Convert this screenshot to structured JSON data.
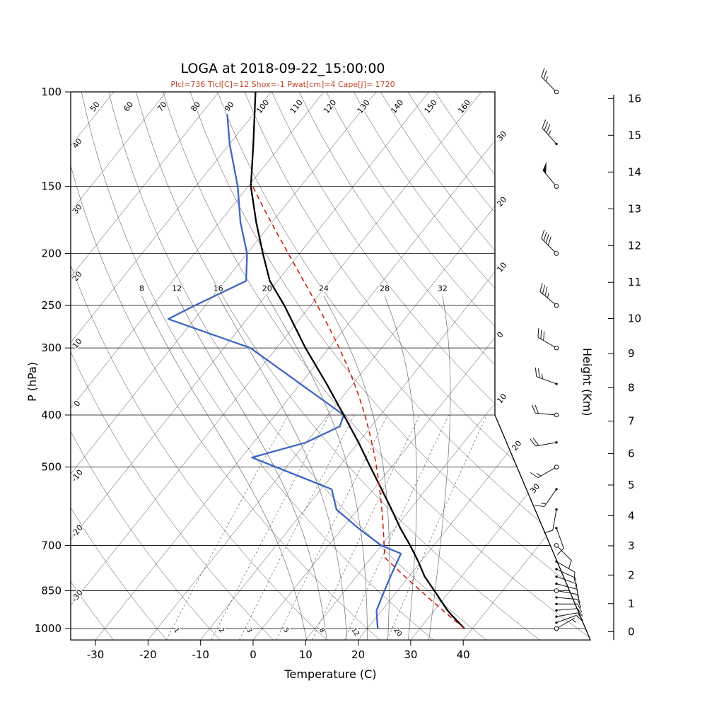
{
  "title": "LOGA at 2018-09-22_15:00:00",
  "subtitle": "Plcl=736 Tlcl[C]=12 Shox=-1 Pwat[cm]=4 Cape[J]= 1720",
  "colors": {
    "temperature": "#000000",
    "dewpoint": "#3b66c4",
    "parcel": "#cc1100",
    "subtitle": "#bf4422",
    "background_lines": "#000000",
    "moist_lines": "#555555"
  },
  "axes": {
    "x_title": "Temperature (C)",
    "y_left_title": "P (hPa)",
    "y_right_title": "Height (Km)",
    "pressure_ticks": [
      100,
      150,
      200,
      250,
      300,
      400,
      500,
      700,
      850,
      1000
    ],
    "temp_ticks": [
      -30,
      -20,
      -10,
      0,
      10,
      20,
      30,
      40
    ],
    "height_ticks": [
      0,
      1,
      2,
      3,
      4,
      5,
      6,
      7,
      8,
      9,
      10,
      11,
      12,
      13,
      14,
      15,
      16
    ]
  },
  "background": {
    "dry_adiabat_thetas": [
      -30,
      -20,
      -10,
      0,
      10,
      20,
      30,
      40,
      50,
      60,
      70,
      80,
      90,
      100,
      110,
      120,
      130,
      140,
      150,
      160
    ],
    "top_adiabat_labels": [
      "50",
      "60",
      "70",
      "80",
      "90",
      "100",
      "110",
      "120",
      "130",
      "140",
      "150",
      "160"
    ],
    "left_adiabat_labels": [
      "40",
      "30",
      "20",
      "10",
      "0",
      "-10",
      "-20",
      "-30"
    ],
    "isotherm_edge_labels": [
      {
        "t": -30,
        "text": "30"
      },
      {
        "t": -20,
        "text": "20"
      },
      {
        "t": -10,
        "text": "10"
      },
      {
        "t": 0,
        "text": "0"
      },
      {
        "t": 10,
        "text": "10"
      },
      {
        "t": 20,
        "text": "20"
      },
      {
        "t": 30,
        "text": "30"
      }
    ],
    "moist_adiabats": [
      {
        "value": 8,
        "text": "8"
      },
      {
        "value": 12,
        "text": "12"
      },
      {
        "value": 16,
        "text": "16"
      },
      {
        "value": 20,
        "text": "20"
      },
      {
        "value": 24,
        "text": "24"
      },
      {
        "value": 28,
        "text": "28"
      },
      {
        "value": 32,
        "text": "32"
      }
    ],
    "mixing_ratios": [
      {
        "value": 1,
        "text": "1"
      },
      {
        "value": 2,
        "text": "2"
      },
      {
        "value": 3,
        "text": "3"
      },
      {
        "value": 5,
        "text": "5"
      },
      {
        "value": 8,
        "text": "8"
      },
      {
        "value": 12,
        "text": "12"
      },
      {
        "value": 20,
        "text": "20"
      }
    ]
  },
  "chart_data": {
    "type": "line",
    "diagram": "skew-T log-P atmospheric sounding",
    "station": "LOGA",
    "datetime": "2018-09-22_15:00:00",
    "indices": {
      "plcl_hpa": 736,
      "tlcl_c": 12,
      "showalter": -1,
      "pwat_cm": 4,
      "cape_j": 1720
    },
    "pressure_range_hpa": [
      100,
      1050
    ],
    "temperature_axis_c": [
      -30,
      40
    ],
    "height_axis_km": [
      0,
      16
    ],
    "temperature_profile_p_c": [
      [
        1000,
        38.5
      ],
      [
        950,
        34.5
      ],
      [
        925,
        32.5
      ],
      [
        850,
        27.0
      ],
      [
        800,
        23.0
      ],
      [
        750,
        19.5
      ],
      [
        700,
        15.5
      ],
      [
        650,
        11.0
      ],
      [
        600,
        6.5
      ],
      [
        550,
        1.5
      ],
      [
        500,
        -4.0
      ],
      [
        450,
        -10.0
      ],
      [
        400,
        -17.0
      ],
      [
        350,
        -25.0
      ],
      [
        300,
        -34.5
      ],
      [
        250,
        -45.0
      ],
      [
        225,
        -51.5
      ],
      [
        200,
        -57.0
      ],
      [
        175,
        -63.0
      ],
      [
        150,
        -69.5
      ],
      [
        125,
        -75.5
      ],
      [
        100,
        -83.0
      ]
    ],
    "dewpoint_profile_p_c": [
      [
        1000,
        22.0
      ],
      [
        950,
        20.0
      ],
      [
        925,
        19.0
      ],
      [
        850,
        17.5
      ],
      [
        800,
        16.5
      ],
      [
        750,
        15.5
      ],
      [
        725,
        15.0
      ],
      [
        700,
        10.0
      ],
      [
        650,
        3.0
      ],
      [
        600,
        -4.0
      ],
      [
        550,
        -8.0
      ],
      [
        500,
        -22.0
      ],
      [
        480,
        -28.0
      ],
      [
        450,
        -20.0
      ],
      [
        420,
        -16.0
      ],
      [
        400,
        -17.0
      ],
      [
        350,
        -30.0
      ],
      [
        300,
        -45.0
      ],
      [
        265,
        -65.0
      ],
      [
        250,
        -62.0
      ],
      [
        225,
        -56.0
      ],
      [
        200,
        -60.0
      ],
      [
        175,
        -66.0
      ],
      [
        150,
        -72.0
      ],
      [
        125,
        -80.0
      ],
      [
        110,
        -85.0
      ]
    ],
    "parcel": {
      "surface_p": 1000,
      "surface_t_c": 38.5,
      "lcl_p": 736,
      "lcl_t_c": 12.4,
      "top_p": 150
    },
    "winds_p_dir_kt": [
      [
        1000,
        60,
        5
      ],
      [
        975,
        70,
        8
      ],
      [
        950,
        80,
        8
      ],
      [
        925,
        85,
        10
      ],
      [
        900,
        90,
        10
      ],
      [
        875,
        95,
        10
      ],
      [
        850,
        100,
        12
      ],
      [
        825,
        105,
        10
      ],
      [
        800,
        110,
        10
      ],
      [
        775,
        115,
        8
      ],
      [
        750,
        120,
        10
      ],
      [
        700,
        135,
        10
      ],
      [
        650,
        160,
        10
      ],
      [
        600,
        190,
        12
      ],
      [
        550,
        215,
        15
      ],
      [
        500,
        240,
        15
      ],
      [
        450,
        260,
        20
      ],
      [
        400,
        275,
        20
      ],
      [
        350,
        290,
        25
      ],
      [
        300,
        300,
        30
      ],
      [
        250,
        310,
        35
      ],
      [
        200,
        315,
        40
      ],
      [
        150,
        320,
        50
      ],
      [
        125,
        318,
        35
      ],
      [
        100,
        315,
        25
      ]
    ],
    "open_circle_levels": [
      1000,
      850,
      700,
      500,
      400,
      300,
      250,
      200,
      150,
      100
    ]
  }
}
